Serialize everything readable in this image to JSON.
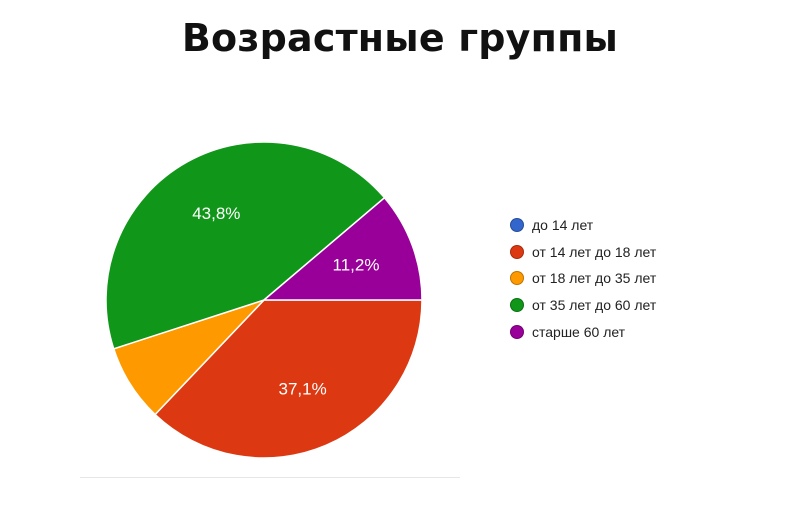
{
  "chart_data": {
    "type": "pie",
    "title": "Возрастные группы",
    "categories": [
      "до 14 лет",
      "от 14 лет до 18 лет",
      "от 18 лет до 35 лет",
      "от 35 лет до 60 лет",
      "старше 60 лет"
    ],
    "values": [
      0,
      37.1,
      7.9,
      43.8,
      11.2
    ],
    "data_labels": [
      "",
      "37,1%",
      "",
      "43,8%",
      "11,2%"
    ],
    "colors": [
      "#3366cc",
      "#dc3912",
      "#ff9900",
      "#109618",
      "#990099"
    ],
    "start_angle_deg": 0,
    "direction": "clockwise",
    "legend_position": "right"
  }
}
